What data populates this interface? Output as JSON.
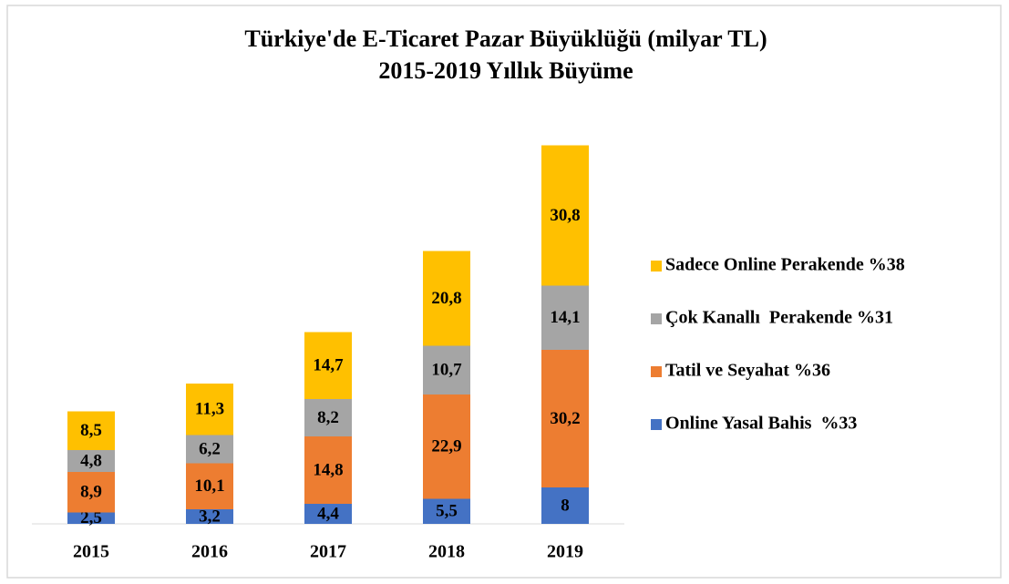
{
  "chart_data": {
    "type": "stacked_bar",
    "title": "Türkiye'de E-Ticaret Pazar Büyüklüğü (milyar TL)",
    "subtitle": "2015-2019 Yıllık Büyüme",
    "categories": [
      "2015",
      "2016",
      "2017",
      "2018",
      "2019"
    ],
    "ylim": [
      0,
      90
    ],
    "legend": "right",
    "series": [
      {
        "name": "Online Yasal Bahis  %33",
        "color": "#4472c4",
        "values": [
          2.5,
          3.2,
          4.4,
          5.5,
          8
        ],
        "value_labels": [
          "2,5",
          "3,2",
          "4,4",
          "5,5",
          "8"
        ]
      },
      {
        "name": "Tatil ve Seyahat %36",
        "color": "#ed7d31",
        "values": [
          8.9,
          10.1,
          14.8,
          22.9,
          30.2
        ],
        "value_labels": [
          "8,9",
          "10,1",
          "14,8",
          "22,9",
          "30,2"
        ]
      },
      {
        "name": "Çok Kanallı  Perakende %31",
        "color": "#a5a5a5",
        "values": [
          4.8,
          6.2,
          8.2,
          10.7,
          14.1
        ],
        "value_labels": [
          "4,8",
          "6,2",
          "8,2",
          "10,7",
          "14,1"
        ]
      },
      {
        "name": "Sadece Online Perakende %38",
        "color": "#ffc000",
        "values": [
          8.5,
          11.3,
          14.7,
          20.8,
          30.8
        ],
        "value_labels": [
          "8,5",
          "11,3",
          "14,7",
          "20,8",
          "30,8"
        ]
      }
    ]
  }
}
